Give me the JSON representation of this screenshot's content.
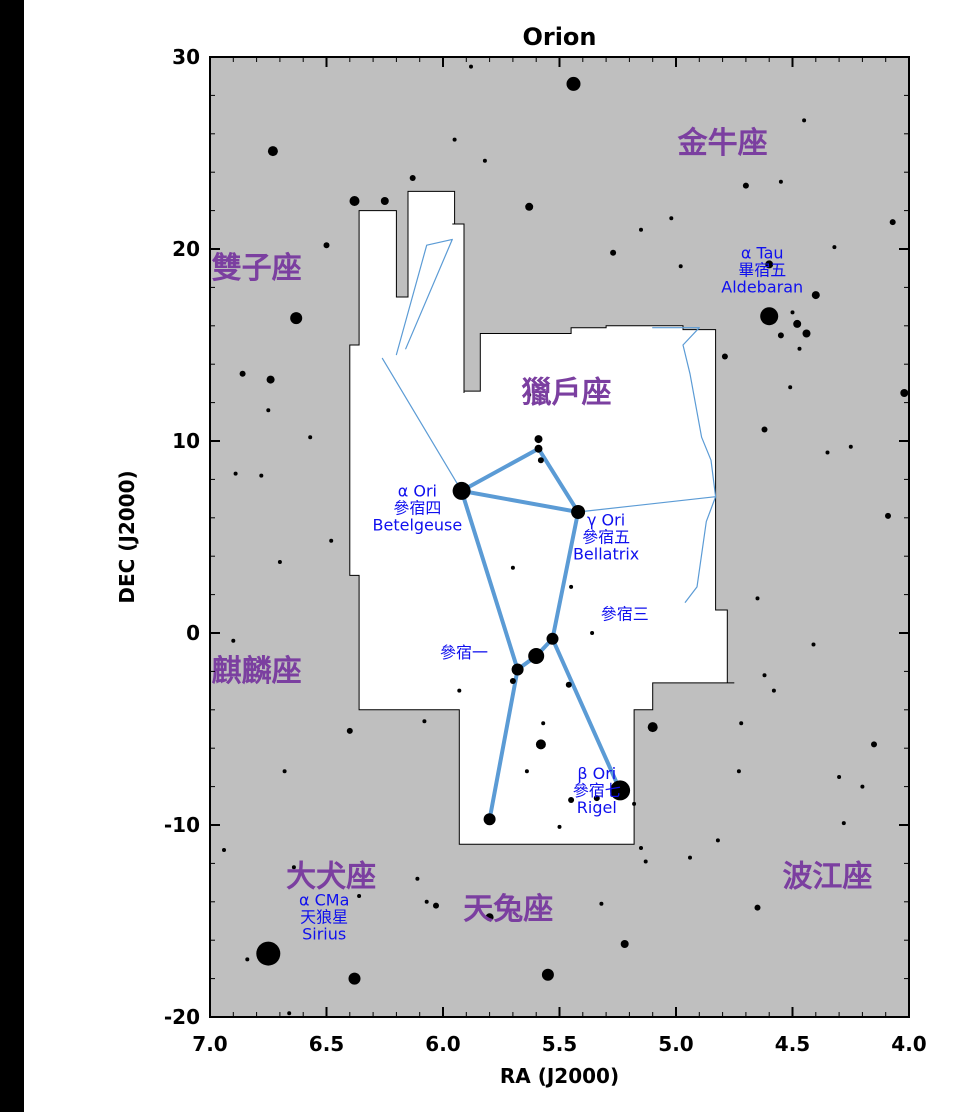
{
  "title": "Orion",
  "xlabel": "RA (J2000)",
  "ylabel": "DEC (J2000)",
  "x_ticks": [
    "7.0",
    "6.5",
    "6.0",
    "5.5",
    "5.0",
    "4.5",
    "4.0"
  ],
  "y_ticks": [
    "30",
    "20",
    "10",
    "0",
    "-10",
    "-20"
  ],
  "constellations": [
    {
      "id": "taurus",
      "name": "金牛座",
      "ra": 4.8,
      "dec": 25.0
    },
    {
      "id": "gemini",
      "name": "雙子座",
      "ra": 6.8,
      "dec": 18.5
    },
    {
      "id": "orion",
      "name": "獵戶座",
      "ra": 5.47,
      "dec": 12.0
    },
    {
      "id": "monoceros",
      "name": "麒麟座",
      "ra": 6.8,
      "dec": -2.5
    },
    {
      "id": "canis-major",
      "name": "大犬座",
      "ra": 6.48,
      "dec": -13.2
    },
    {
      "id": "lepus",
      "name": "天兔座",
      "ra": 5.72,
      "dec": -14.9
    },
    {
      "id": "eridanus",
      "name": "波江座",
      "ra": 4.35,
      "dec": -13.2
    }
  ],
  "star_labels": [
    {
      "id": "aldebaran",
      "lines": [
        "α Tau",
        "畢宿五",
        "Aldebaran"
      ],
      "ra": 4.63,
      "dec": 19.5,
      "anchor": "middle"
    },
    {
      "id": "betelgeuse",
      "lines": [
        "α  Ori",
        "參宿四",
        "Betelgeuse"
      ],
      "ra": 6.11,
      "dec": 7.1,
      "anchor": "middle"
    },
    {
      "id": "bellatrix",
      "lines": [
        "γ  Ori",
        "參宿五",
        "Bellatrix"
      ],
      "ra": 5.3,
      "dec": 5.6,
      "anchor": "middle"
    },
    {
      "id": "mintaka",
      "lines": [
        "參宿三"
      ],
      "ra": 5.22,
      "dec": 0.7,
      "anchor": "middle"
    },
    {
      "id": "alnitak",
      "lines": [
        "參宿一"
      ],
      "ra": 5.91,
      "dec": -1.3,
      "anchor": "middle"
    },
    {
      "id": "rigel",
      "lines": [
        "β Ori",
        "參宿七",
        "Rigel"
      ],
      "ra": 5.34,
      "dec": -7.6,
      "anchor": "middle"
    },
    {
      "id": "sirius",
      "lines": [
        "α CMa",
        "天狼星",
        "Sirius"
      ],
      "ra": 6.51,
      "dec": -14.2,
      "anchor": "middle"
    }
  ],
  "colors": {
    "background": "#bfbfbf",
    "region": "#ffffff",
    "constellation_label": "#7b3fa0",
    "star_label": "#1010ee",
    "line": "#5b9bd5",
    "star": "#000000"
  },
  "chart_data": {
    "type": "scatter",
    "title": "Orion",
    "xlabel": "RA (J2000)",
    "ylabel": "DEC (J2000)",
    "xlim": [
      7.0,
      4.0
    ],
    "ylim": [
      -20,
      30
    ],
    "region_boundary": [
      [
        6.36,
        22
      ],
      [
        6.2,
        22
      ],
      [
        6.2,
        17.5
      ],
      [
        6.15,
        17.5
      ],
      [
        6.15,
        23
      ],
      [
        5.95,
        23
      ],
      [
        5.95,
        21.3
      ],
      [
        5.96,
        21.3
      ],
      [
        5.91,
        21.3
      ],
      [
        5.91,
        12.5
      ],
      [
        5.91,
        12.6
      ],
      [
        5.91,
        12.6
      ],
      [
        5.84,
        12.6
      ],
      [
        5.84,
        15.6
      ],
      [
        5.45,
        15.6
      ],
      [
        5.45,
        15.9
      ],
      [
        5.3,
        15.9
      ],
      [
        5.3,
        16.0
      ],
      [
        4.97,
        16.0
      ],
      [
        4.97,
        15.8
      ],
      [
        4.83,
        15.8
      ],
      [
        4.83,
        1.2
      ],
      [
        4.78,
        1.2
      ],
      [
        4.78,
        1.0
      ],
      [
        4.78,
        -2.6
      ],
      [
        4.75,
        -2.6
      ],
      [
        5.1,
        -2.6
      ],
      [
        5.1,
        -4.0
      ],
      [
        5.18,
        -4.0
      ],
      [
        5.18,
        -11.0
      ],
      [
        5.93,
        -11.0
      ],
      [
        5.93,
        -4.0
      ],
      [
        6.36,
        -4.0
      ],
      [
        6.36,
        3.0
      ],
      [
        6.36,
        3.0
      ],
      [
        6.4,
        3.0
      ],
      [
        6.4,
        15.0
      ],
      [
        6.36,
        15.0
      ],
      [
        6.36,
        22
      ]
    ],
    "lines": [
      {
        "w": "thin",
        "pts": [
          [
            6.2,
            14.5
          ],
          [
            6.07,
            20.2
          ],
          [
            5.96,
            20.5
          ],
          [
            6.16,
            14.8
          ]
        ]
      },
      {
        "w": "thin",
        "pts": [
          [
            6.26,
            14.3
          ],
          [
            5.92,
            7.4
          ]
        ]
      },
      {
        "w": "thick",
        "pts": [
          [
            5.92,
            7.4
          ],
          [
            5.59,
            9.6
          ],
          [
            5.42,
            6.3
          ]
        ]
      },
      {
        "w": "thick",
        "pts": [
          [
            5.92,
            7.4
          ],
          [
            5.42,
            6.3
          ]
        ]
      },
      {
        "w": "thick",
        "pts": [
          [
            5.92,
            7.4
          ],
          [
            5.68,
            -1.9
          ],
          [
            5.6,
            -1.2
          ],
          [
            5.53,
            -0.3
          ],
          [
            5.42,
            6.3
          ]
        ]
      },
      {
        "w": "thick",
        "pts": [
          [
            5.68,
            -1.9
          ],
          [
            5.8,
            -9.7
          ]
        ]
      },
      {
        "w": "thick",
        "pts": [
          [
            5.53,
            -0.3
          ],
          [
            5.24,
            -8.2
          ]
        ]
      },
      {
        "w": "thin",
        "pts": [
          [
            5.42,
            6.3
          ],
          [
            4.83,
            7.1
          ],
          [
            4.85,
            9.0
          ],
          [
            4.89,
            10.2
          ],
          [
            4.94,
            13.5
          ],
          [
            4.97,
            15.0
          ],
          [
            4.9,
            15.9
          ],
          [
            5.1,
            15.9
          ]
        ]
      },
      {
        "w": "thin",
        "pts": [
          [
            4.83,
            7.1
          ],
          [
            4.87,
            5.8
          ],
          [
            4.91,
            2.4
          ],
          [
            4.96,
            1.6
          ]
        ]
      }
    ],
    "stars": [
      {
        "ra": 5.92,
        "dec": 7.4,
        "size": 9
      },
      {
        "ra": 5.42,
        "dec": 6.3,
        "size": 7
      },
      {
        "ra": 5.24,
        "dec": -8.2,
        "size": 10
      },
      {
        "ra": 5.53,
        "dec": -0.3,
        "size": 6
      },
      {
        "ra": 5.6,
        "dec": -1.2,
        "size": 8
      },
      {
        "ra": 5.68,
        "dec": -1.9,
        "size": 6
      },
      {
        "ra": 5.8,
        "dec": -9.7,
        "size": 6
      },
      {
        "ra": 5.59,
        "dec": 9.6,
        "size": 4
      },
      {
        "ra": 5.58,
        "dec": 9.0,
        "size": 3
      },
      {
        "ra": 5.59,
        "dec": 10.1,
        "size": 4
      },
      {
        "ra": 6.75,
        "dec": -16.7,
        "size": 12
      },
      {
        "ra": 4.6,
        "dec": 16.5,
        "size": 9
      },
      {
        "ra": 5.44,
        "dec": 28.6,
        "size": 7
      },
      {
        "ra": 6.63,
        "dec": 16.4,
        "size": 6
      },
      {
        "ra": 6.73,
        "dec": 25.1,
        "size": 5
      },
      {
        "ra": 6.38,
        "dec": 22.5,
        "size": 5
      },
      {
        "ra": 6.25,
        "dec": 22.5,
        "size": 4
      },
      {
        "ra": 6.5,
        "dec": 20.2,
        "size": 3
      },
      {
        "ra": 6.38,
        "dec": -18.0,
        "size": 6
      },
      {
        "ra": 5.55,
        "dec": -17.8,
        "size": 6
      },
      {
        "ra": 5.1,
        "dec": -4.9,
        "size": 5
      },
      {
        "ra": 5.58,
        "dec": -5.8,
        "size": 5
      },
      {
        "ra": 5.22,
        "dec": -16.2,
        "size": 4
      },
      {
        "ra": 5.8,
        "dec": -14.8,
        "size": 4
      },
      {
        "ra": 4.02,
        "dec": 12.5,
        "size": 4
      },
      {
        "ra": 4.44,
        "dec": 15.6,
        "size": 4
      },
      {
        "ra": 4.48,
        "dec": 16.1,
        "size": 4
      },
      {
        "ra": 4.6,
        "dec": 19.2,
        "size": 4
      },
      {
        "ra": 4.4,
        "dec": 17.6,
        "size": 4
      },
      {
        "ra": 4.09,
        "dec": 6.1,
        "size": 3
      },
      {
        "ra": 6.74,
        "dec": 13.2,
        "size": 4
      },
      {
        "ra": 6.86,
        "dec": 13.5,
        "size": 3
      },
      {
        "ra": 5.34,
        "dec": -8.6,
        "size": 3
      },
      {
        "ra": 5.45,
        "dec": -8.7,
        "size": 3
      },
      {
        "ra": 6.48,
        "dec": 4.8,
        "size": 2
      },
      {
        "ra": 6.64,
        "dec": -12.2,
        "size": 2
      },
      {
        "ra": 6.68,
        "dec": -7.2,
        "size": 2
      },
      {
        "ra": 6.4,
        "dec": -5.1,
        "size": 3
      },
      {
        "ra": 6.13,
        "dec": 23.7,
        "size": 3
      },
      {
        "ra": 6.36,
        "dec": -13.7,
        "size": 2
      },
      {
        "ra": 6.03,
        "dec": -14.2,
        "size": 3
      },
      {
        "ra": 5.27,
        "dec": 19.8,
        "size": 3
      },
      {
        "ra": 5.02,
        "dec": 21.6,
        "size": 2
      },
      {
        "ra": 5.63,
        "dec": 22.2,
        "size": 4
      },
      {
        "ra": 5.88,
        "dec": 29.5,
        "size": 2
      },
      {
        "ra": 5.95,
        "dec": 25.7,
        "size": 2
      },
      {
        "ra": 5.82,
        "dec": 24.6,
        "size": 2
      },
      {
        "ra": 4.7,
        "dec": 23.3,
        "size": 3
      },
      {
        "ra": 4.55,
        "dec": 23.5,
        "size": 2
      },
      {
        "ra": 4.07,
        "dec": 21.4,
        "size": 3
      },
      {
        "ra": 4.79,
        "dec": 14.4,
        "size": 3
      },
      {
        "ra": 4.62,
        "dec": 10.6,
        "size": 3
      },
      {
        "ra": 4.25,
        "dec": 9.7,
        "size": 2
      },
      {
        "ra": 6.57,
        "dec": 10.2,
        "size": 2
      },
      {
        "ra": 6.78,
        "dec": 8.2,
        "size": 2
      },
      {
        "ra": 6.7,
        "dec": 3.7,
        "size": 2
      },
      {
        "ra": 6.9,
        "dec": -0.4,
        "size": 2
      },
      {
        "ra": 5.7,
        "dec": 3.4,
        "size": 2
      },
      {
        "ra": 5.45,
        "dec": 2.4,
        "size": 2
      },
      {
        "ra": 5.36,
        "dec": 0.0,
        "size": 2
      },
      {
        "ra": 5.46,
        "dec": -2.7,
        "size": 3
      },
      {
        "ra": 5.7,
        "dec": -2.5,
        "size": 3
      },
      {
        "ra": 5.93,
        "dec": -3.0,
        "size": 2
      },
      {
        "ra": 6.08,
        "dec": -4.6,
        "size": 2
      },
      {
        "ra": 5.64,
        "dec": -7.2,
        "size": 2
      },
      {
        "ra": 5.57,
        "dec": -4.7,
        "size": 2
      },
      {
        "ra": 5.5,
        "dec": -10.1,
        "size": 2
      },
      {
        "ra": 5.18,
        "dec": -8.9,
        "size": 2
      },
      {
        "ra": 5.15,
        "dec": -11.2,
        "size": 2
      },
      {
        "ra": 6.94,
        "dec": -11.3,
        "size": 2
      },
      {
        "ra": 6.84,
        "dec": -17.0,
        "size": 2
      },
      {
        "ra": 6.66,
        "dec": -19.8,
        "size": 2
      },
      {
        "ra": 6.11,
        "dec": -12.8,
        "size": 2
      },
      {
        "ra": 6.07,
        "dec": -14.0,
        "size": 2
      },
      {
        "ra": 5.32,
        "dec": -14.1,
        "size": 2
      },
      {
        "ra": 4.94,
        "dec": -11.7,
        "size": 2
      },
      {
        "ra": 4.73,
        "dec": -7.2,
        "size": 2
      },
      {
        "ra": 4.65,
        "dec": -14.3,
        "size": 3
      },
      {
        "ra": 4.3,
        "dec": -7.5,
        "size": 2
      },
      {
        "ra": 4.15,
        "dec": -5.8,
        "size": 3
      },
      {
        "ra": 4.28,
        "dec": -9.9,
        "size": 2
      },
      {
        "ra": 4.82,
        "dec": -10.8,
        "size": 2
      },
      {
        "ra": 5.13,
        "dec": -11.9,
        "size": 2
      },
      {
        "ra": 4.72,
        "dec": -4.7,
        "size": 2
      },
      {
        "ra": 4.58,
        "dec": -3.0,
        "size": 2
      },
      {
        "ra": 4.62,
        "dec": -2.2,
        "size": 2
      },
      {
        "ra": 4.2,
        "dec": -8.0,
        "size": 2
      },
      {
        "ra": 4.41,
        "dec": -0.6,
        "size": 2
      },
      {
        "ra": 4.65,
        "dec": 1.8,
        "size": 2
      },
      {
        "ra": 6.89,
        "dec": 8.3,
        "size": 2
      },
      {
        "ra": 6.75,
        "dec": 11.6,
        "size": 2
      },
      {
        "ra": 4.47,
        "dec": 14.8,
        "size": 2
      },
      {
        "ra": 4.55,
        "dec": 15.5,
        "size": 3
      },
      {
        "ra": 4.5,
        "dec": 16.7,
        "size": 2
      },
      {
        "ra": 4.51,
        "dec": 12.8,
        "size": 2
      },
      {
        "ra": 4.35,
        "dec": 9.4,
        "size": 2
      },
      {
        "ra": 4.45,
        "dec": 26.7,
        "size": 2
      },
      {
        "ra": 4.32,
        "dec": 20.1,
        "size": 2
      },
      {
        "ra": 4.98,
        "dec": 19.1,
        "size": 2
      },
      {
        "ra": 5.15,
        "dec": 21.0,
        "size": 2
      },
      {
        "ra": 5.63,
        "dec": 12.4,
        "size": 2
      }
    ]
  }
}
